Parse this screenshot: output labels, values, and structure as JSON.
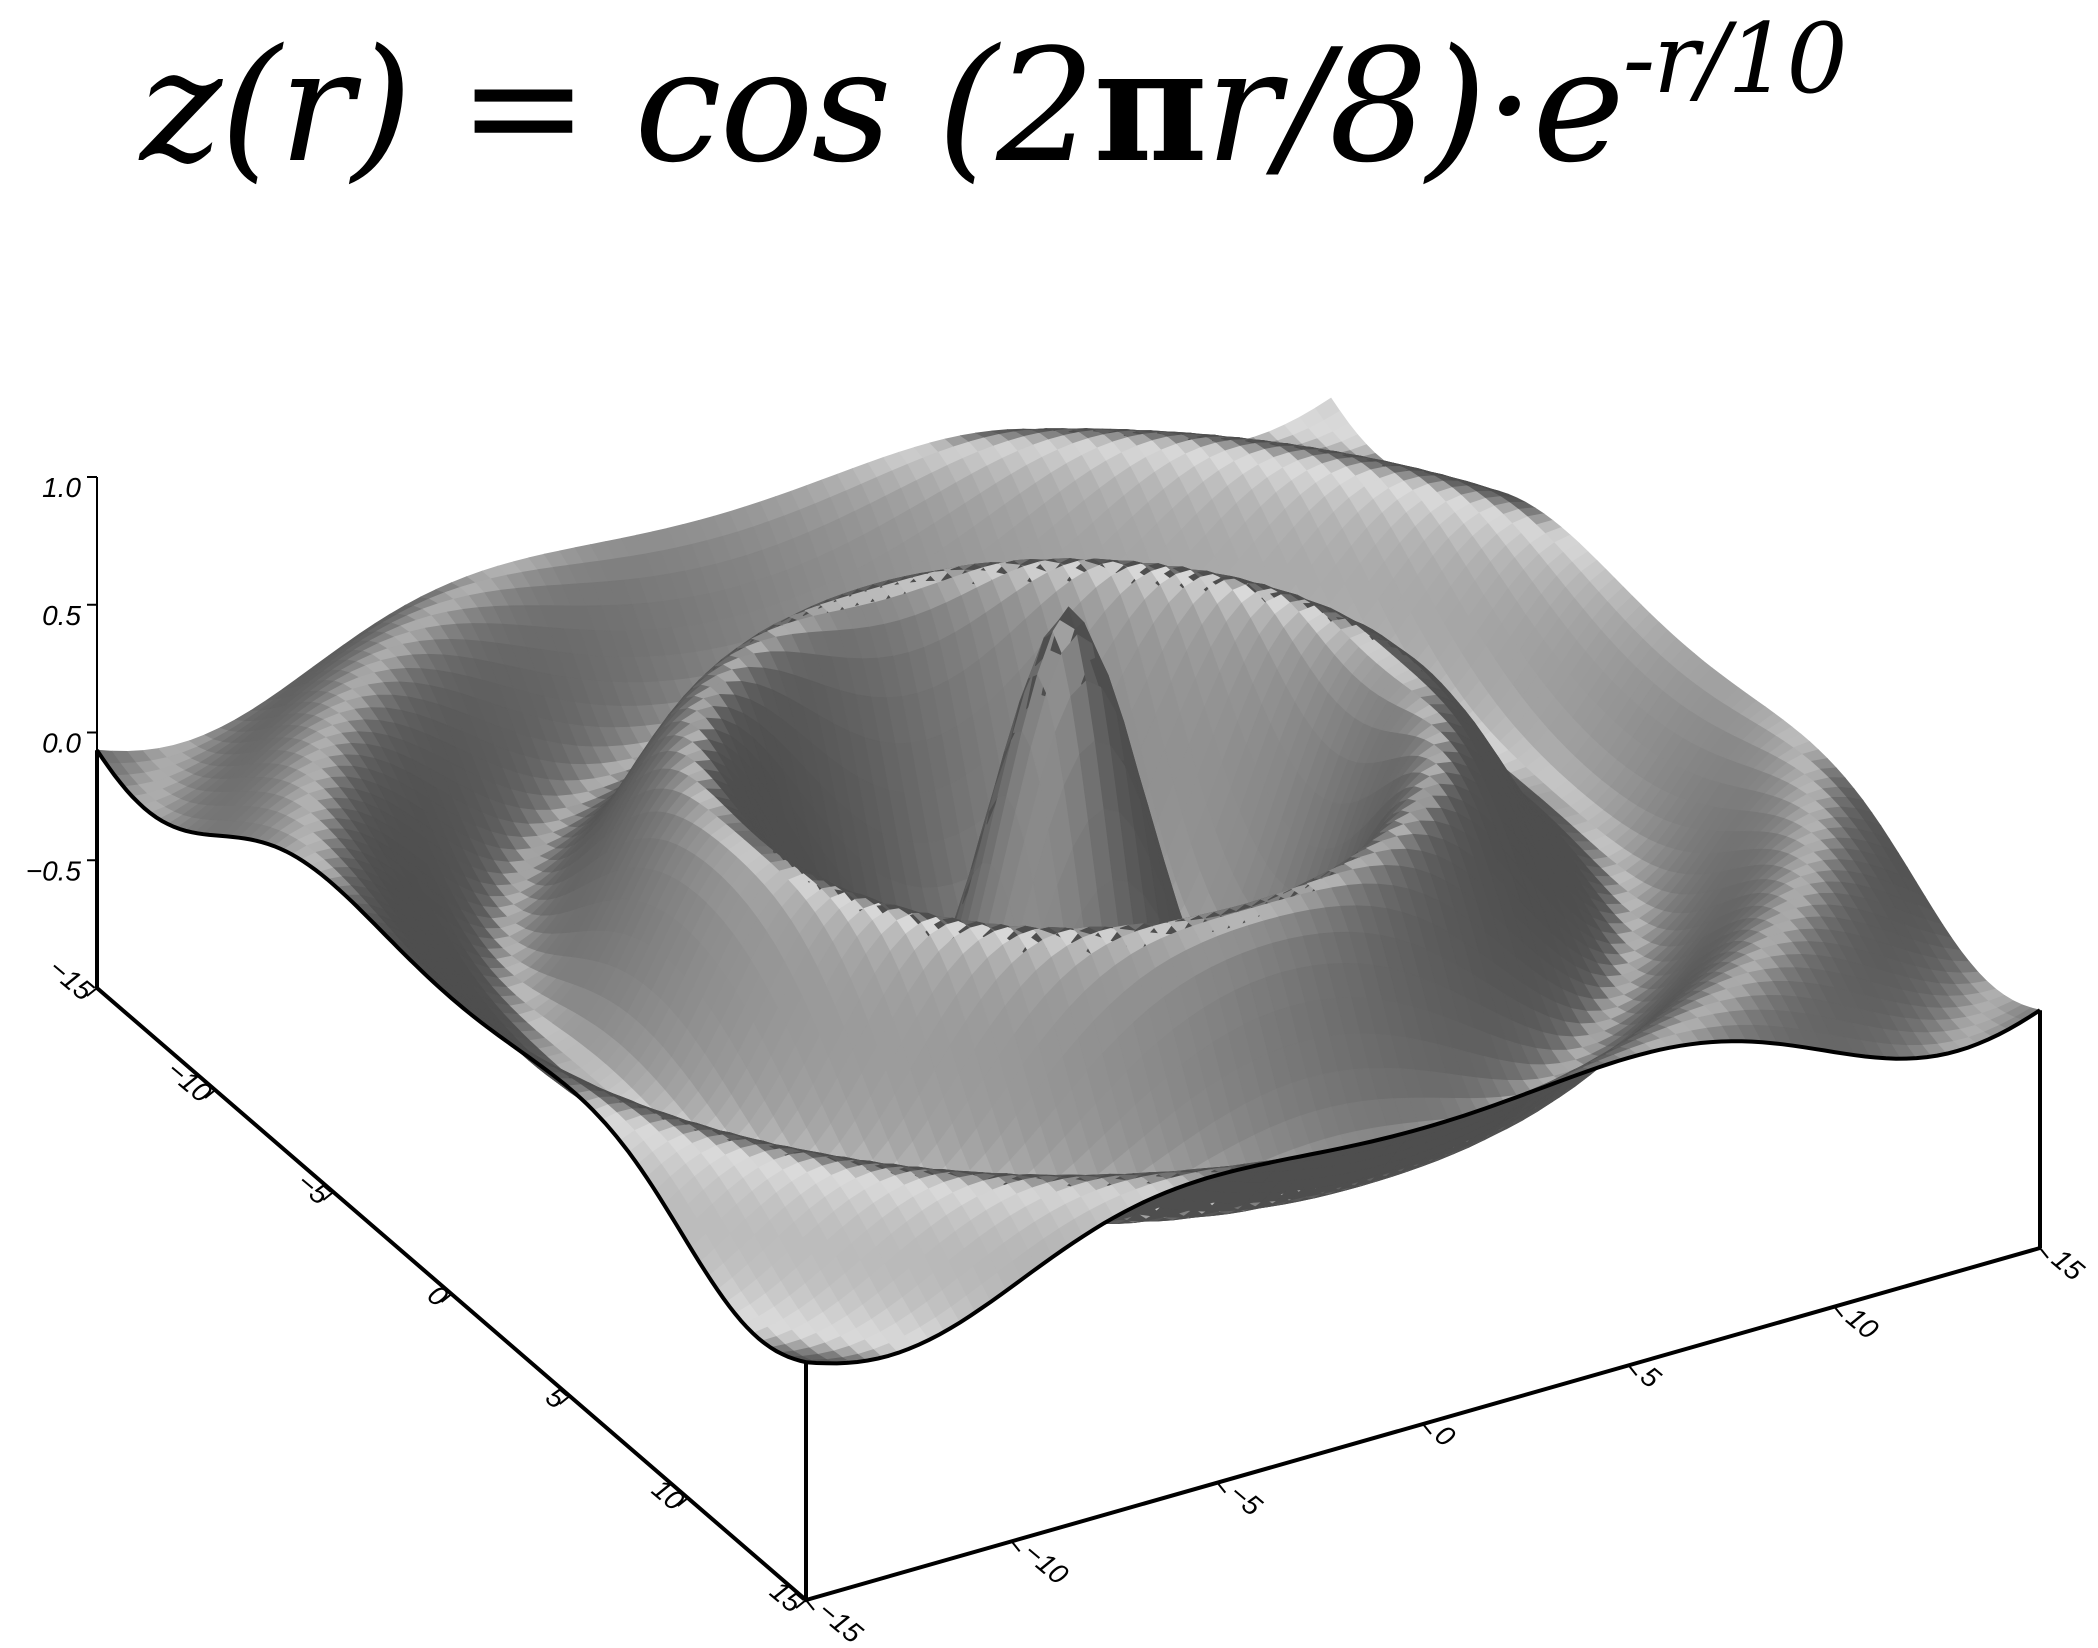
{
  "title": {
    "lhs": "z(r) = cos (2",
    "pi": "π",
    "mid": "r/8)·e",
    "exponent": "-r/10"
  },
  "chart_data": {
    "type": "surface",
    "function": "cos(2*pi*r/8)*exp(-r/10)",
    "x_range": [
      -15,
      15
    ],
    "y_range": [
      -15,
      15
    ],
    "z_range": [
      -1.0,
      1.0
    ],
    "view": {
      "azimuth_deg": 135,
      "elevation_deg": 30
    },
    "shading": "gray illuminated",
    "base_color": "#8a8a8a",
    "frame_color": "#000000",
    "z_ticks": [
      "1.0",
      "0.5",
      "0.0",
      "−0.5"
    ],
    "z_tick_values": [
      1.0,
      0.5,
      0.0,
      -0.5
    ],
    "x_ticks": [
      "−15",
      "−10",
      "−5",
      "0",
      "5",
      "10",
      "15"
    ],
    "x_tick_values": [
      -15,
      -10,
      -5,
      0,
      5,
      10,
      15
    ],
    "y_ticks": [
      "−15",
      "−10",
      "−5",
      "0",
      "5",
      "10",
      "15"
    ],
    "y_tick_values": [
      -15,
      -10,
      -5,
      0,
      5,
      10,
      15
    ]
  }
}
